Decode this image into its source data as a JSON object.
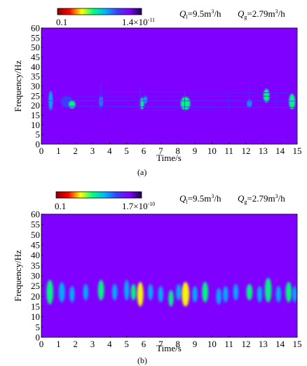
{
  "chart_data": [
    {
      "type": "heatmap",
      "panel_label": "(a)",
      "colorbar": {
        "min_label": "0.1",
        "max_label": "1.4×10",
        "max_exponent": "-11",
        "colors": [
          "#8b0000",
          "#ff0000",
          "#ffff00",
          "#00ff80",
          "#00b4ff",
          "#3c3cff",
          "#7f00ff",
          "#1a004d"
        ]
      },
      "annotation": {
        "ql": "Q",
        "ql_sub": "l",
        "ql_value": "=9.5m",
        "ql_exp": "3",
        "ql_unit": "/h",
        "qg": "Q",
        "qg_sub": "g",
        "qg_value": "=2.79m",
        "qg_exp": "3",
        "qg_unit": "/h"
      },
      "xlabel": "Time/s",
      "ylabel": "Frequency/Hz",
      "xlim": [
        0,
        15
      ],
      "ylim": [
        0,
        60
      ],
      "xticks": [
        "0",
        "1",
        "2",
        "3",
        "4",
        "5",
        "6",
        "7",
        "8",
        "9",
        "10",
        "11",
        "12",
        "13",
        "14",
        "15"
      ],
      "yticks": [
        "0",
        "5",
        "10",
        "15",
        "20",
        "25",
        "30",
        "35",
        "40",
        "45",
        "50",
        "55",
        "60"
      ],
      "background_color": "#7f00ff",
      "features": [
        {
          "kind": "blob",
          "x": 0.55,
          "y": 22.5,
          "w": 0.12,
          "h": 5,
          "color": "#00b4ff"
        },
        {
          "kind": "blob",
          "x": 1.5,
          "y": 22,
          "w": 0.35,
          "h": 3,
          "color": "#3c3cff"
        },
        {
          "kind": "blob",
          "x": 1.8,
          "y": 20.5,
          "w": 0.2,
          "h": 2,
          "color": "#00ff80"
        },
        {
          "kind": "blob",
          "x": 3.5,
          "y": 22,
          "w": 0.1,
          "h": 3,
          "color": "#00b4ff"
        },
        {
          "kind": "blob",
          "x": 5.9,
          "y": 21,
          "w": 0.12,
          "h": 3,
          "color": "#00ff80"
        },
        {
          "kind": "blob",
          "x": 6.1,
          "y": 23,
          "w": 0.1,
          "h": 2,
          "color": "#00b4ff"
        },
        {
          "kind": "blob",
          "x": 8.45,
          "y": 21,
          "w": 0.28,
          "h": 3.5,
          "color": "#00ff80"
        },
        {
          "kind": "blob",
          "x": 12.2,
          "y": 21,
          "w": 0.14,
          "h": 2,
          "color": "#00b4ff"
        },
        {
          "kind": "blob",
          "x": 13.2,
          "y": 25,
          "w": 0.18,
          "h": 3.5,
          "color": "#00ff80"
        },
        {
          "kind": "blob",
          "x": 14.7,
          "y": 22,
          "w": 0.18,
          "h": 4,
          "color": "#00ff80"
        },
        {
          "kind": "line",
          "x1": 0.3,
          "y1": 22.5,
          "x2": 14.9,
          "y2": 22.3,
          "color": "#3c3cff"
        },
        {
          "kind": "line",
          "x1": 1.2,
          "y1": 19.5,
          "x2": 14.9,
          "y2": 19.0,
          "color": "#3c3cff"
        },
        {
          "kind": "line",
          "x1": 3.4,
          "y1": 27,
          "x2": 14.7,
          "y2": 26.5,
          "color": "#4a2aff"
        },
        {
          "kind": "line",
          "x1": 2.0,
          "y1": 24.5,
          "x2": 14.0,
          "y2": 24.8,
          "color": "#4a2aff"
        },
        {
          "kind": "line",
          "x1": 5.3,
          "y1": 17.5,
          "x2": 10.5,
          "y2": 17.8,
          "color": "#4a2aff"
        },
        {
          "kind": "line",
          "x1": 3.5,
          "y1": 31,
          "x2": 3.5,
          "y2": 16,
          "color": "#3c3cff"
        },
        {
          "kind": "line",
          "x1": 5.8,
          "y1": 29,
          "x2": 5.8,
          "y2": 18,
          "color": "#3c3cff"
        },
        {
          "kind": "line",
          "x1": 8.4,
          "y1": 28,
          "x2": 8.4,
          "y2": 17,
          "color": "#3c3cff"
        },
        {
          "kind": "line",
          "x1": 11.0,
          "y1": 27,
          "x2": 11.0,
          "y2": 17,
          "color": "#4a2aff"
        },
        {
          "kind": "line",
          "x1": 12.2,
          "y1": 30,
          "x2": 12.2,
          "y2": 17,
          "color": "#3c3cff"
        },
        {
          "kind": "line",
          "x1": 13.8,
          "y1": 26,
          "x2": 13.8,
          "y2": 18,
          "color": "#4a2aff"
        }
      ]
    },
    {
      "type": "heatmap",
      "panel_label": "(b)",
      "colorbar": {
        "min_label": "0.1",
        "max_label": "1.7×10",
        "max_exponent": "-10",
        "colors": [
          "#8b0000",
          "#ff0000",
          "#ffff00",
          "#00ff80",
          "#00b4ff",
          "#3c3cff",
          "#7f00ff",
          "#1a004d"
        ]
      },
      "annotation": {
        "ql": "Q",
        "ql_sub": "l",
        "ql_value": "=9.5m",
        "ql_exp": "3",
        "ql_unit": "/h",
        "qg": "Q",
        "qg_sub": "g",
        "qg_value": "=2.79m",
        "qg_exp": "3",
        "qg_unit": "/h"
      },
      "xlabel": "Time/s",
      "ylabel": "Frequency/Hz",
      "xlim": [
        0,
        15
      ],
      "ylim": [
        0,
        60
      ],
      "xticks": [
        "0",
        "1",
        "2",
        "3",
        "4",
        "5",
        "6",
        "7",
        "8",
        "9",
        "10",
        "11",
        "12",
        "13",
        "14",
        "15"
      ],
      "yticks": [
        "0",
        "5",
        "10",
        "15",
        "20",
        "25",
        "30",
        "35",
        "40",
        "45",
        "50",
        "55",
        "60"
      ],
      "background_color": "#7f00ff",
      "features": [
        {
          "kind": "blob",
          "x": 0.5,
          "y": 22,
          "w": 0.2,
          "h": 6,
          "color": "#00ff80"
        },
        {
          "kind": "blob",
          "x": 1.2,
          "y": 22,
          "w": 0.18,
          "h": 5,
          "color": "#00b4ff"
        },
        {
          "kind": "blob",
          "x": 1.8,
          "y": 21,
          "w": 0.15,
          "h": 4,
          "color": "#00b4ff"
        },
        {
          "kind": "blob",
          "x": 2.6,
          "y": 22,
          "w": 0.15,
          "h": 4,
          "color": "#00b4ff"
        },
        {
          "kind": "blob",
          "x": 3.5,
          "y": 23,
          "w": 0.18,
          "h": 5,
          "color": "#00ff80"
        },
        {
          "kind": "blob",
          "x": 4.3,
          "y": 22,
          "w": 0.15,
          "h": 4,
          "color": "#00b4ff"
        },
        {
          "kind": "blob",
          "x": 5.0,
          "y": 23,
          "w": 0.15,
          "h": 5,
          "color": "#00b4ff"
        },
        {
          "kind": "blob",
          "x": 5.4,
          "y": 22,
          "w": 0.15,
          "h": 4,
          "color": "#00ff80"
        },
        {
          "kind": "blob",
          "x": 5.8,
          "y": 21,
          "w": 0.18,
          "h": 6,
          "color": "#ffff00"
        },
        {
          "kind": "blob",
          "x": 6.4,
          "y": 22,
          "w": 0.15,
          "h": 4,
          "color": "#00b4ff"
        },
        {
          "kind": "blob",
          "x": 7.0,
          "y": 21,
          "w": 0.15,
          "h": 4,
          "color": "#00b4ff"
        },
        {
          "kind": "blob",
          "x": 7.6,
          "y": 19,
          "w": 0.15,
          "h": 4,
          "color": "#00ff80"
        },
        {
          "kind": "blob",
          "x": 8.05,
          "y": 22,
          "w": 0.15,
          "h": 4,
          "color": "#00b4ff"
        },
        {
          "kind": "blob",
          "x": 8.45,
          "y": 21,
          "w": 0.22,
          "h": 6,
          "color": "#ffff00"
        },
        {
          "kind": "blob",
          "x": 9.0,
          "y": 21,
          "w": 0.15,
          "h": 4,
          "color": "#00b4ff"
        },
        {
          "kind": "blob",
          "x": 9.6,
          "y": 22,
          "w": 0.18,
          "h": 5,
          "color": "#00ff80"
        },
        {
          "kind": "blob",
          "x": 10.4,
          "y": 20,
          "w": 0.15,
          "h": 4,
          "color": "#00b4ff"
        },
        {
          "kind": "blob",
          "x": 10.8,
          "y": 21,
          "w": 0.15,
          "h": 4,
          "color": "#00b4ff"
        },
        {
          "kind": "blob",
          "x": 11.4,
          "y": 22,
          "w": 0.15,
          "h": 4,
          "color": "#00b4ff"
        },
        {
          "kind": "blob",
          "x": 12.2,
          "y": 22,
          "w": 0.18,
          "h": 4,
          "color": "#00ff80"
        },
        {
          "kind": "blob",
          "x": 12.8,
          "y": 21,
          "w": 0.15,
          "h": 4,
          "color": "#00b4ff"
        },
        {
          "kind": "blob",
          "x": 13.3,
          "y": 23,
          "w": 0.2,
          "h": 6,
          "color": "#00ff80"
        },
        {
          "kind": "blob",
          "x": 13.9,
          "y": 21,
          "w": 0.15,
          "h": 4,
          "color": "#00b4ff"
        },
        {
          "kind": "blob",
          "x": 14.5,
          "y": 22,
          "w": 0.18,
          "h": 5,
          "color": "#00ff80"
        },
        {
          "kind": "blob",
          "x": 14.85,
          "y": 21,
          "w": 0.12,
          "h": 4,
          "color": "#00b4ff"
        }
      ]
    }
  ]
}
